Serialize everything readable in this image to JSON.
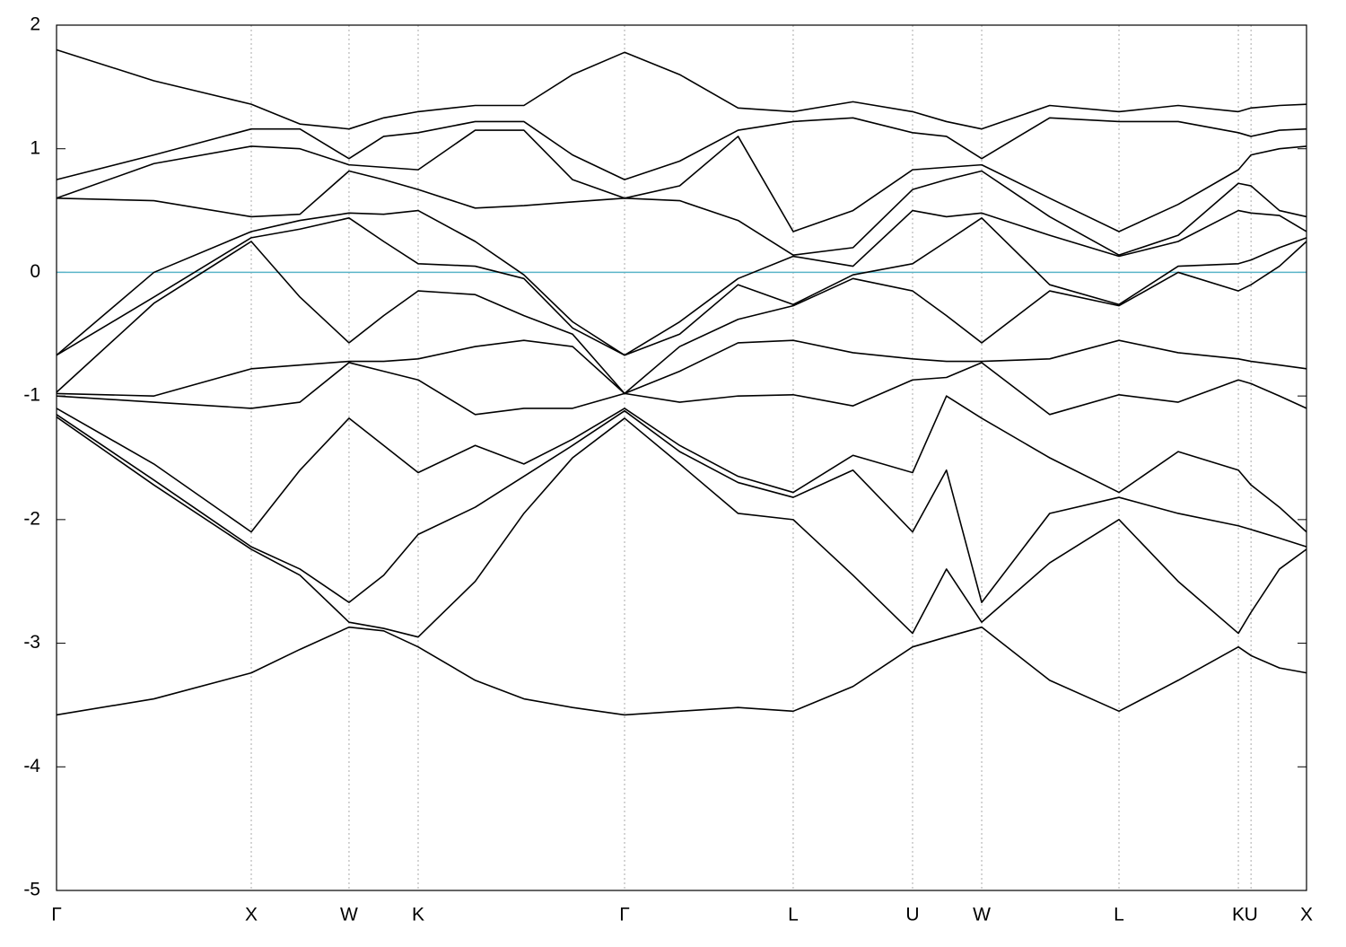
{
  "chart_data": {
    "type": "line",
    "x": [
      0,
      0.5,
      1.0,
      1.25,
      1.502,
      1.68,
      1.857,
      2.15,
      2.4,
      2.65,
      2.917,
      3.2,
      3.5,
      3.783,
      4.09,
      4.396,
      4.57,
      4.751,
      5.1,
      5.456,
      5.76,
      6.069,
      6.134,
      6.28,
      6.419
    ],
    "xlim": [
      0,
      6.419
    ],
    "xticks": [
      {
        "value": 0,
        "label": "Γ"
      },
      {
        "value": 1.0,
        "label": "X"
      },
      {
        "value": 1.502,
        "label": "W"
      },
      {
        "value": 1.857,
        "label": "K"
      },
      {
        "value": 2.917,
        "label": "Γ"
      },
      {
        "value": 3.783,
        "label": "L"
      },
      {
        "value": 4.396,
        "label": "U"
      },
      {
        "value": 4.751,
        "label": "W"
      },
      {
        "value": 5.456,
        "label": "L"
      },
      {
        "value": 6.069,
        "label": "K"
      },
      {
        "value": 6.134,
        "label": "U"
      },
      {
        "value": 6.419,
        "label": "X"
      }
    ],
    "ylim": [
      -5,
      2
    ],
    "yticks": [
      -5,
      -4,
      -3,
      -2,
      -1,
      0,
      1,
      2
    ],
    "grid": "x",
    "hline": {
      "y": 0,
      "color": "#5ab4c8"
    },
    "series": [
      {
        "color": "#000000",
        "values": [
          -3.58,
          -3.45,
          -3.24,
          -3.05,
          -2.87,
          -2.9,
          -3.03,
          -3.3,
          -3.45,
          -3.52,
          -3.58,
          -3.55,
          -3.52,
          -3.55,
          -3.35,
          -3.03,
          -2.95,
          -2.87,
          -3.3,
          -3.55,
          -3.3,
          -3.03,
          -3.1,
          -3.2,
          -3.24
        ]
      },
      {
        "color": "#000000",
        "values": [
          -1.17,
          -1.72,
          -2.24,
          -2.45,
          -2.83,
          -2.88,
          -2.95,
          -2.5,
          -1.95,
          -1.5,
          -1.18,
          -1.55,
          -1.95,
          -2.0,
          -2.45,
          -2.92,
          -2.4,
          -2.83,
          -2.35,
          -2.0,
          -2.5,
          -2.92,
          -2.75,
          -2.4,
          -2.24
        ]
      },
      {
        "color": "#000000",
        "values": [
          -1.15,
          -1.68,
          -2.22,
          -2.4,
          -2.67,
          -2.45,
          -2.12,
          -1.9,
          -1.65,
          -1.4,
          -1.12,
          -1.45,
          -1.7,
          -1.82,
          -1.6,
          -2.1,
          -1.6,
          -2.67,
          -1.95,
          -1.82,
          -1.95,
          -2.05,
          -2.08,
          -2.15,
          -2.22
        ]
      },
      {
        "color": "#000000",
        "values": [
          -1.1,
          -1.55,
          -2.1,
          -1.6,
          -1.18,
          -1.4,
          -1.62,
          -1.4,
          -1.55,
          -1.35,
          -1.1,
          -1.4,
          -1.65,
          -1.78,
          -1.48,
          -1.62,
          -1.0,
          -1.18,
          -1.5,
          -1.78,
          -1.45,
          -1.6,
          -1.72,
          -1.9,
          -2.1
        ]
      },
      {
        "color": "#000000",
        "values": [
          -1.0,
          -1.05,
          -1.1,
          -1.05,
          -0.73,
          -0.8,
          -0.87,
          -1.15,
          -1.1,
          -1.1,
          -0.98,
          -1.05,
          -1.0,
          -0.99,
          -1.08,
          -0.87,
          -0.85,
          -0.73,
          -1.15,
          -0.99,
          -1.05,
          -0.87,
          -0.9,
          -1.0,
          -1.1
        ]
      },
      {
        "color": "#000000",
        "values": [
          -0.98,
          -1.0,
          -0.78,
          -0.75,
          -0.72,
          -0.72,
          -0.7,
          -0.6,
          -0.55,
          -0.6,
          -0.98,
          -0.8,
          -0.57,
          -0.55,
          -0.65,
          -0.7,
          -0.72,
          -0.72,
          -0.7,
          -0.55,
          -0.65,
          -0.7,
          -0.72,
          -0.75,
          -0.78
        ]
      },
      {
        "color": "#000000",
        "values": [
          -0.97,
          -0.25,
          0.25,
          -0.2,
          -0.57,
          -0.35,
          -0.15,
          -0.18,
          -0.35,
          -0.5,
          -0.98,
          -0.6,
          -0.38,
          -0.27,
          -0.05,
          -0.15,
          -0.35,
          -0.57,
          -0.15,
          -0.27,
          0.0,
          -0.15,
          -0.1,
          0.05,
          0.25
        ]
      },
      {
        "color": "#000000",
        "values": [
          -0.67,
          -0.2,
          0.28,
          0.35,
          0.44,
          0.25,
          0.07,
          0.05,
          -0.05,
          -0.45,
          -0.67,
          -0.5,
          -0.1,
          -0.26,
          -0.02,
          0.07,
          0.25,
          0.44,
          -0.1,
          -0.26,
          0.05,
          0.07,
          0.1,
          0.2,
          0.28
        ]
      },
      {
        "color": "#000000",
        "values": [
          -0.67,
          0.0,
          0.33,
          0.42,
          0.48,
          0.47,
          0.5,
          0.25,
          -0.02,
          -0.4,
          -0.67,
          -0.4,
          -0.05,
          0.13,
          0.05,
          0.5,
          0.45,
          0.48,
          0.3,
          0.13,
          0.25,
          0.5,
          0.48,
          0.46,
          0.33
        ]
      },
      {
        "color": "#000000",
        "values": [
          0.6,
          0.58,
          0.45,
          0.47,
          0.82,
          0.75,
          0.67,
          0.52,
          0.54,
          0.57,
          0.6,
          0.58,
          0.42,
          0.14,
          0.2,
          0.67,
          0.75,
          0.82,
          0.45,
          0.14,
          0.3,
          0.72,
          0.7,
          0.5,
          0.45
        ]
      },
      {
        "color": "#000000",
        "values": [
          0.6,
          0.88,
          1.02,
          1.0,
          0.87,
          0.85,
          0.83,
          1.15,
          1.15,
          0.75,
          0.6,
          0.7,
          1.1,
          0.33,
          0.5,
          0.83,
          0.85,
          0.87,
          0.6,
          0.33,
          0.55,
          0.83,
          0.95,
          1.0,
          1.02
        ]
      },
      {
        "color": "#000000",
        "values": [
          0.75,
          0.95,
          1.16,
          1.16,
          0.92,
          1.1,
          1.13,
          1.22,
          1.22,
          0.95,
          0.75,
          0.9,
          1.15,
          1.22,
          1.25,
          1.13,
          1.1,
          0.92,
          1.25,
          1.22,
          1.22,
          1.13,
          1.1,
          1.15,
          1.16
        ]
      },
      {
        "color": "#000000",
        "values": [
          1.8,
          1.55,
          1.36,
          1.2,
          1.16,
          1.25,
          1.3,
          1.35,
          1.35,
          1.6,
          1.78,
          1.6,
          1.33,
          1.3,
          1.38,
          1.3,
          1.22,
          1.16,
          1.35,
          1.3,
          1.35,
          1.3,
          1.33,
          1.35,
          1.36
        ]
      }
    ]
  }
}
